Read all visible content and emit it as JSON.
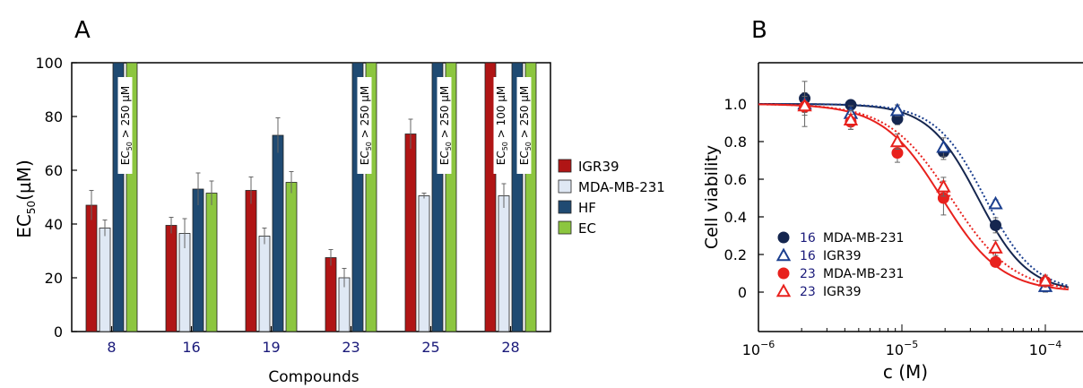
{
  "chart_data": [
    {
      "panel_label": "A",
      "type": "bar",
      "xlabel": "Compounds",
      "ylabel_main": "EC",
      "ylabel_sub": "50",
      "ylabel_unit": "(µM)",
      "ylim": [
        0,
        100
      ],
      "yticks": [
        "0",
        "20",
        "40",
        "60",
        "80",
        "100"
      ],
      "categories": [
        "8",
        "16",
        "19",
        "23",
        "25",
        "28"
      ],
      "series": [
        {
          "name": "IGR39",
          "color": "#b01515",
          "values": [
            47,
            39.5,
            52.5,
            27.5,
            73.5,
            100
          ],
          "errors": [
            5.5,
            3,
            5,
            3,
            5.5,
            null
          ]
        },
        {
          "name": "MDA-MB-231",
          "color": "#dfe8f4",
          "values": [
            38.5,
            36.5,
            35.5,
            20,
            50.5,
            50.5
          ],
          "errors": [
            3,
            5.5,
            3,
            3.5,
            1,
            4.5
          ]
        },
        {
          "name": "HF",
          "color": "#1f4a72",
          "values": [
            100,
            53,
            73,
            100,
            100,
            100
          ],
          "errors": [
            null,
            6,
            6.5,
            null,
            null,
            null
          ]
        },
        {
          "name": "EC",
          "color": "#8cc63f",
          "values": [
            100,
            51.5,
            55.5,
            100,
            100,
            100
          ],
          "errors": [
            null,
            4.5,
            4,
            null,
            null,
            null
          ]
        }
      ],
      "annotations": [
        {
          "category": "8",
          "label": "EC",
          "sub": "50",
          "rest": " > 250 µM"
        },
        {
          "category": "23",
          "label": "EC",
          "sub": "50",
          "rest": " > 250 µM"
        },
        {
          "category": "25",
          "label": "EC",
          "sub": "50",
          "rest": " > 250 µM"
        },
        {
          "category": "28",
          "label": "EC",
          "sub": "50",
          "rest": " > 100 µM",
          "between_series": true
        },
        {
          "category": "28",
          "label": "EC",
          "sub": "50",
          "rest": " > 250 µM"
        }
      ],
      "legend_position": "right"
    },
    {
      "panel_label": "B",
      "type": "scatter",
      "xlabel": "c (M)",
      "ylabel": "Cell viability",
      "xscale": "log",
      "xlim": [
        1e-06,
        0.00014
      ],
      "ylim": [
        -0.15,
        1.2
      ],
      "yticks": [
        "0",
        "0.2",
        "0.4",
        "0.6",
        "0.8",
        "1.0"
      ],
      "xticks": [
        {
          "base": "10",
          "exp": "−6"
        },
        {
          "base": "10",
          "exp": "−5"
        },
        {
          "base": "10",
          "exp": "−4"
        }
      ],
      "series": [
        {
          "name": "MDA-MB-231",
          "compound": "16",
          "marker": "circle-filled",
          "color": "#15264f",
          "line": "solid",
          "x": [
            2.1e-06,
            4.4e-06,
            9.3e-06,
            1.95e-05,
            4.5e-05,
            0.0001
          ],
          "y": [
            1.03,
            0.995,
            0.92,
            0.745,
            0.355,
            0.055
          ],
          "err": [
            0.03,
            0.02,
            0.03,
            0.04,
            0.04,
            0.02
          ]
        },
        {
          "name": "IGR39",
          "compound": "16",
          "marker": "triangle-open",
          "color": "#1b3f8f",
          "line": "dotted",
          "x": [
            2.1e-06,
            4.4e-06,
            9.3e-06,
            1.95e-05,
            4.5e-05,
            0.0001
          ],
          "y": [
            1.0,
            0.95,
            0.965,
            0.77,
            0.47,
            0.03
          ],
          "err": [
            0.12,
            0.04,
            0.03,
            0.05,
            0.02,
            0.03
          ]
        },
        {
          "name": "MDA-MB-231",
          "compound": "23",
          "marker": "circle-filled",
          "color": "#e8211d",
          "line": "solid",
          "x": [
            2.1e-06,
            4.4e-06,
            9.3e-06,
            1.95e-05,
            4.5e-05,
            0.0001
          ],
          "y": [
            0.985,
            0.905,
            0.74,
            0.5,
            0.16,
            0.055
          ],
          "err": [
            0.03,
            0.04,
            0.05,
            0.09,
            0.02,
            0.02
          ]
        },
        {
          "name": "IGR39",
          "compound": "23",
          "marker": "triangle-open",
          "color": "#e8211d",
          "line": "dotted",
          "x": [
            2.1e-06,
            4.4e-06,
            9.3e-06,
            1.95e-05,
            4.5e-05,
            0.0001
          ],
          "y": [
            0.99,
            0.915,
            0.8,
            0.56,
            0.235,
            0.06
          ],
          "err": [
            0.05,
            0.05,
            0.04,
            0.05,
            0.04,
            0.03
          ]
        }
      ],
      "fits": [
        {
          "series": 0,
          "ec50": 3.4e-05,
          "hill": 2.5
        },
        {
          "series": 1,
          "ec50": 3.8e-05,
          "hill": 2.5
        },
        {
          "series": 2,
          "ec50": 1.9e-05,
          "hill": 2.1
        },
        {
          "series": 3,
          "ec50": 2.2e-05,
          "hill": 2.0
        }
      ],
      "legend_position": "bottom-left"
    }
  ]
}
